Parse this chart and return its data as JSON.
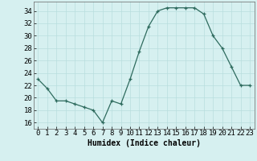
{
  "x": [
    0,
    1,
    2,
    3,
    4,
    5,
    6,
    7,
    8,
    9,
    10,
    11,
    12,
    13,
    14,
    15,
    16,
    17,
    18,
    19,
    20,
    21,
    22,
    23
  ],
  "y": [
    23,
    21.5,
    19.5,
    19.5,
    19,
    18.5,
    18,
    16,
    19.5,
    19,
    23,
    27.5,
    31.5,
    34,
    34.5,
    34.5,
    34.5,
    34.5,
    33.5,
    30,
    28,
    25,
    22,
    22
  ],
  "xlabel": "Humidex (Indice chaleur)",
  "xlim": [
    -0.5,
    23.5
  ],
  "ylim": [
    15,
    35.5
  ],
  "yticks": [
    16,
    18,
    20,
    22,
    24,
    26,
    28,
    30,
    32,
    34
  ],
  "xticks": [
    0,
    1,
    2,
    3,
    4,
    5,
    6,
    7,
    8,
    9,
    10,
    11,
    12,
    13,
    14,
    15,
    16,
    17,
    18,
    19,
    20,
    21,
    22,
    23
  ],
  "line_color": "#2e6b5e",
  "marker": "+",
  "bg_color": "#d6f0f0",
  "grid_color": "#b8dede",
  "xlabel_fontsize": 7,
  "tick_fontsize": 6.5
}
